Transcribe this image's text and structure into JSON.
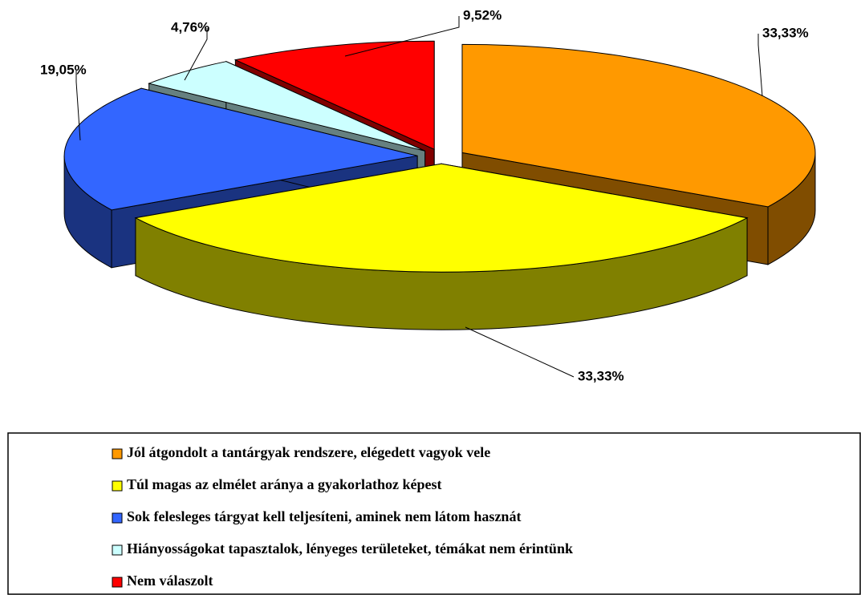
{
  "chart_data": {
    "type": "pie3d",
    "categories": [
      "Jól átgondolt a tantárgyak rendszere, elégedett vagyok vele",
      "Túl magas az elmélet aránya a gyakorlathoz képest",
      "Sok felesleges tárgyat kell teljesíteni, aminek nem látom hasznát",
      "Hiányosságokat tapasztalok, lényeges területeket, témákat nem érintünk",
      "Nem válaszolt"
    ],
    "values": [
      33.33,
      33.33,
      19.05,
      4.76,
      9.52
    ],
    "value_labels": [
      "33,33%",
      "33,33%",
      "19,05%",
      "4,76%",
      "9,52%"
    ],
    "colors": [
      "#ff9900",
      "#ffff00",
      "#3366ff",
      "#ccffff",
      "#ff0000"
    ],
    "legend": "bottom"
  }
}
